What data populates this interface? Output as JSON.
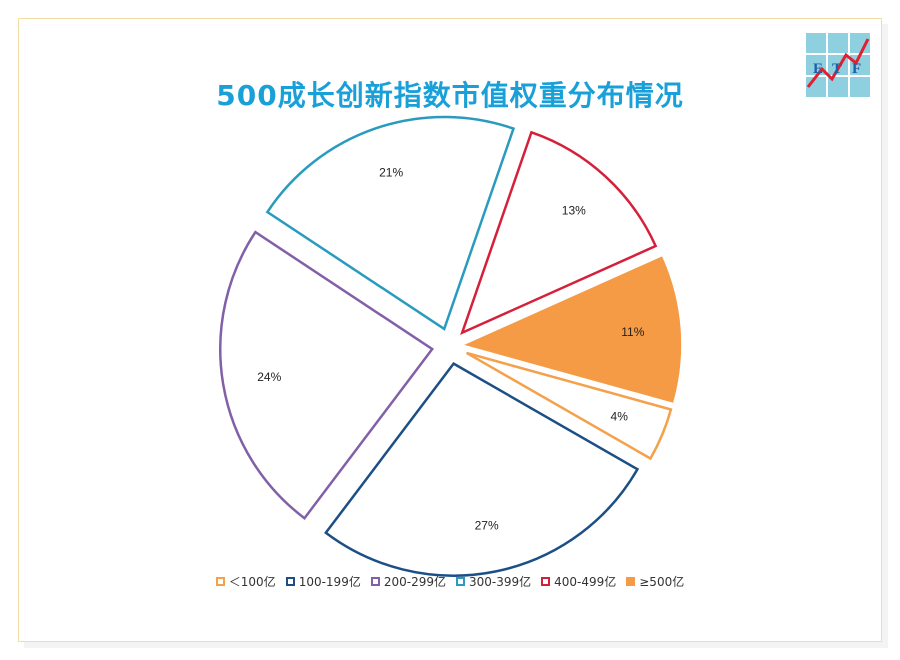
{
  "title": "500成长创新指数市值权重分布情况",
  "logo": {
    "name": "etf-logo-icon",
    "letters": [
      "E",
      "T",
      "F"
    ],
    "bg_color": "#8ecfe0",
    "line_color": "#e02030",
    "text_color": "#1a5fa8"
  },
  "chart_data": {
    "type": "pie",
    "categories": [
      "＜100亿",
      "100-199亿",
      "200-299亿",
      "300-399亿",
      "400-499亿",
      "≥500亿"
    ],
    "values": [
      4,
      27,
      24,
      21,
      13,
      11
    ],
    "labels": [
      "4%",
      "27%",
      "24%",
      "21%",
      "13%",
      "11%"
    ],
    "colors": [
      "#f5a04a",
      "#1c4f86",
      "#8260a8",
      "#2a9bbf",
      "#d6203a",
      "#f59a45"
    ],
    "filled": [
      false,
      false,
      false,
      false,
      false,
      true
    ],
    "exploded": true,
    "legend_position": "bottom"
  }
}
